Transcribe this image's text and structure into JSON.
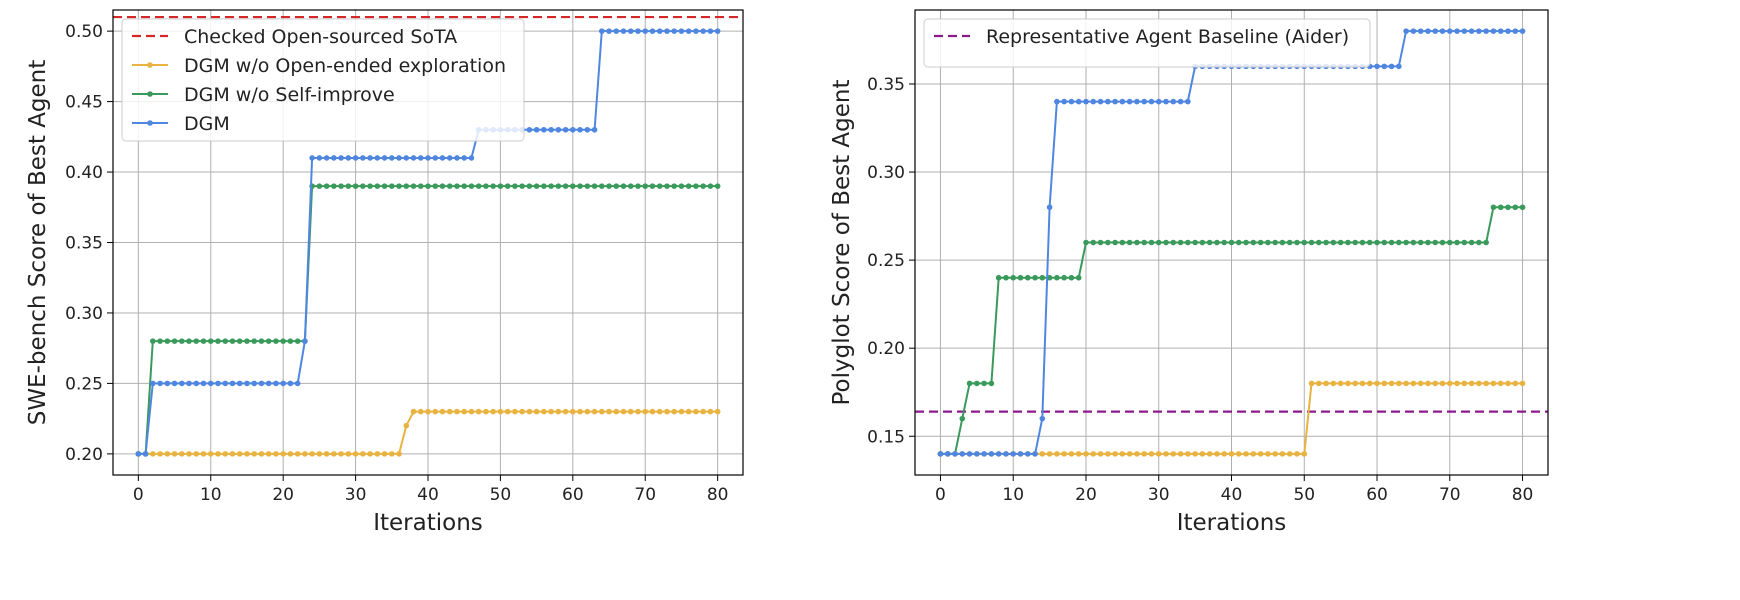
{
  "chart_data": [
    {
      "type": "line",
      "xlabel": "Iterations",
      "ylabel": "SWE-bench Score of Best Agent",
      "xlim": [
        -3.5,
        83.5
      ],
      "ylim": [
        0.185,
        0.515
      ],
      "xticks": [
        0,
        10,
        20,
        30,
        40,
        50,
        60,
        70,
        80
      ],
      "xtick_labels": [
        "0",
        "10",
        "20",
        "30",
        "40",
        "50",
        "60",
        "70",
        "80"
      ],
      "yticks": [
        0.2,
        0.25,
        0.3,
        0.35,
        0.4,
        0.45,
        0.5
      ],
      "ytick_labels": [
        "0.20",
        "0.25",
        "0.30",
        "0.35",
        "0.40",
        "0.45",
        "0.50"
      ],
      "grid": true,
      "legend_position": "top-left",
      "baselines": [
        {
          "name": "Checked Open-sourced SoTA",
          "y": 0.51,
          "color": "#d62728",
          "style": "dashed"
        }
      ],
      "series": [
        {
          "name": "DGM w/o Open-ended exploration",
          "color": "#E8B340",
          "steps": [
            [
              0,
              0.2
            ],
            [
              37,
              0.22
            ],
            [
              38,
              0.23
            ],
            [
              80,
              0.23
            ]
          ]
        },
        {
          "name": "DGM w/o Self-improve",
          "color": "#3A9A5B",
          "steps": [
            [
              0,
              0.2
            ],
            [
              2,
              0.28
            ],
            [
              24,
              0.39
            ],
            [
              80,
              0.39
            ]
          ]
        },
        {
          "name": "DGM",
          "color": "#4F86E0",
          "steps": [
            [
              0,
              0.2
            ],
            [
              2,
              0.25
            ],
            [
              23,
              0.28
            ],
            [
              24,
              0.41
            ],
            [
              47,
              0.43
            ],
            [
              64,
              0.5
            ],
            [
              80,
              0.5
            ]
          ]
        }
      ]
    },
    {
      "type": "line",
      "xlabel": "Iterations",
      "ylabel": "Polyglot Score of Best Agent",
      "xlim": [
        -3.5,
        83.5
      ],
      "ylim": [
        0.128,
        0.392
      ],
      "xticks": [
        0,
        10,
        20,
        30,
        40,
        50,
        60,
        70,
        80
      ],
      "xtick_labels": [
        "0",
        "10",
        "20",
        "30",
        "40",
        "50",
        "60",
        "70",
        "80"
      ],
      "yticks": [
        0.15,
        0.2,
        0.25,
        0.3,
        0.35
      ],
      "ytick_labels": [
        "0.15",
        "0.20",
        "0.25",
        "0.30",
        "0.35"
      ],
      "grid": true,
      "legend_position": "top-left",
      "baselines": [
        {
          "name": "Representative Agent Baseline (Aider)",
          "y": 0.164,
          "color": "#8B1A8B",
          "style": "dashed"
        }
      ],
      "series": [
        {
          "name": "",
          "color": "#E8B340",
          "steps": [
            [
              0,
              0.14
            ],
            [
              51,
              0.18
            ],
            [
              80,
              0.18
            ]
          ]
        },
        {
          "name": "",
          "color": "#3A9A5B",
          "steps": [
            [
              0,
              0.14
            ],
            [
              3,
              0.16
            ],
            [
              4,
              0.18
            ],
            [
              8,
              0.24
            ],
            [
              20,
              0.26
            ],
            [
              76,
              0.28
            ],
            [
              80,
              0.28
            ]
          ]
        },
        {
          "name": "",
          "color": "#4F86E0",
          "steps": [
            [
              0,
              0.14
            ],
            [
              14,
              0.16
            ],
            [
              15,
              0.28
            ],
            [
              16,
              0.34
            ],
            [
              35,
              0.36
            ],
            [
              64,
              0.38
            ],
            [
              80,
              0.38
            ]
          ]
        }
      ]
    }
  ]
}
